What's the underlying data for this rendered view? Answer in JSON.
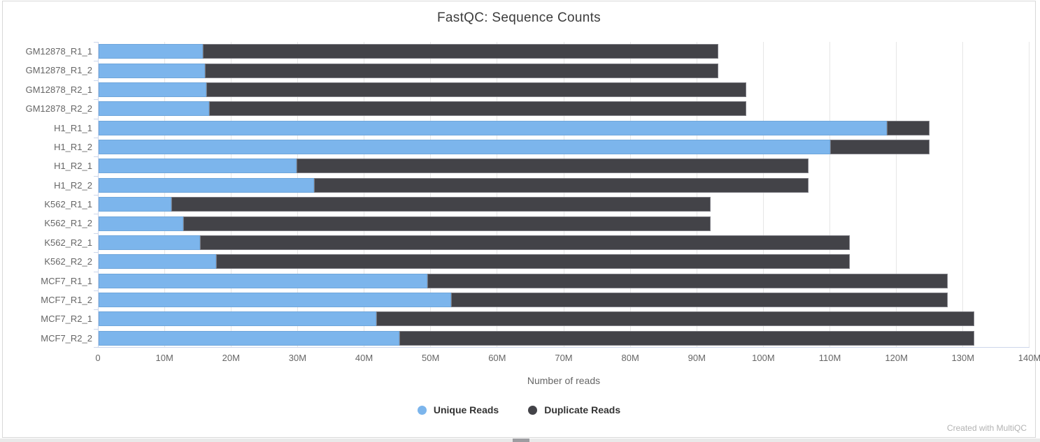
{
  "header": {
    "title": "FastQC: Sequence Counts"
  },
  "chart_data": {
    "type": "bar",
    "orientation": "horizontal",
    "stacked": true,
    "title": "FastQC: Sequence Counts",
    "xlabel": "Number of reads",
    "ylabel": "",
    "units": "millions of reads",
    "xlim_m": [
      0,
      140
    ],
    "grid": true,
    "legend_position": "bottom",
    "x_tick_labels": [
      "0",
      "10M",
      "20M",
      "30M",
      "40M",
      "50M",
      "60M",
      "70M",
      "80M",
      "90M",
      "100M",
      "110M",
      "120M",
      "130M",
      "140M"
    ],
    "categories": [
      "GM12878_R1_1",
      "GM12878_R1_2",
      "GM12878_R2_1",
      "GM12878_R2_2",
      "H1_R1_1",
      "H1_R1_2",
      "H1_R2_1",
      "H1_R2_2",
      "K562_R1_1",
      "K562_R1_2",
      "K562_R2_1",
      "K562_R2_2",
      "MCF7_R1_1",
      "MCF7_R1_2",
      "MCF7_R2_1",
      "MCF7_R2_2"
    ],
    "series": [
      {
        "name": "Unique Reads",
        "color": "#7cb5ec",
        "values_m": [
          15.7,
          16.0,
          16.2,
          16.6,
          118.5,
          110.0,
          29.8,
          32.4,
          10.9,
          12.7,
          15.3,
          17.7,
          49.4,
          53.0,
          41.8,
          45.2
        ]
      },
      {
        "name": "Duplicate Reads",
        "color": "#434348",
        "values_m": [
          77.5,
          77.2,
          81.2,
          80.8,
          6.5,
          15.0,
          77.0,
          74.4,
          81.1,
          79.3,
          97.7,
          95.3,
          78.3,
          74.7,
          89.9,
          86.5
        ]
      }
    ]
  },
  "footer": {
    "credit": "Created with MultiQC"
  },
  "colors": {
    "unique": "#7cb5ec",
    "duplicate": "#434348",
    "gridline": "#e6e6e6",
    "axis_line": "#ccd6eb",
    "axis_label": "#666666",
    "legend_text": "#333333",
    "title_text": "#3c3c3c",
    "credit_text": "#b3b3b3"
  }
}
